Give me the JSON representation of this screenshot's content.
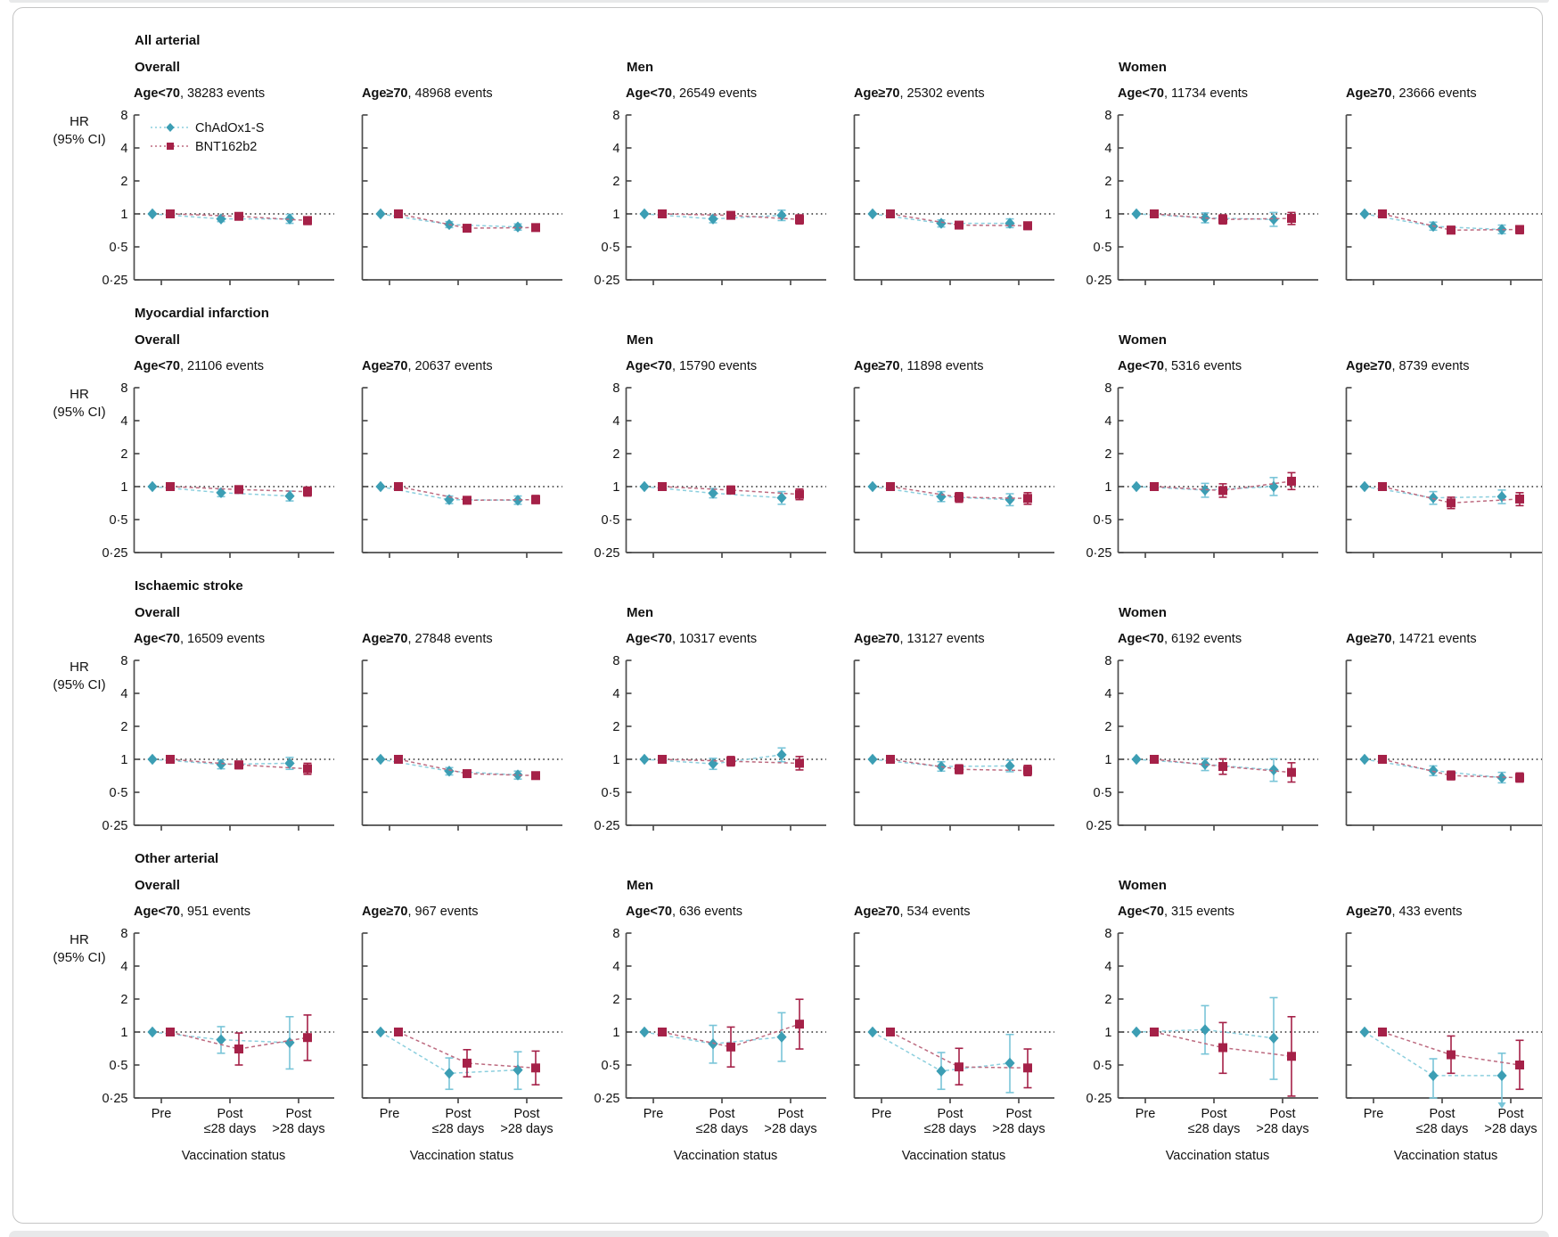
{
  "chart_data": {
    "type": "line",
    "description": "Hazard ratios (95% CI) for arterial events before and after vaccination, by outcome, sex and age group",
    "x_categories": [
      "Pre",
      "Post ≤28 days",
      "Post >28 days"
    ],
    "x_tick_lines": [
      [
        "Pre"
      ],
      [
        "Post",
        "≤28 days"
      ],
      [
        "Post",
        ">28 days"
      ]
    ],
    "xlabel": "Vaccination status",
    "ylabel_lines": [
      "HR",
      "(95% CI)"
    ],
    "y_ticks": [
      8,
      4,
      2,
      1,
      0.5,
      0.25
    ],
    "y_tick_labels": [
      "8",
      "4",
      "2",
      "1",
      "0·5",
      "0·25"
    ],
    "ylim": [
      0.25,
      8
    ],
    "yscale": "log2",
    "reference_line": 1,
    "grid": false,
    "legend": {
      "position": "inside-top-left-first-panel",
      "entries": [
        "ChAdOx1-S",
        "BNT162b2"
      ]
    },
    "series_meta": [
      {
        "name": "ChAdOx1-S",
        "marker": "diamond",
        "color": "#3c9eb4",
        "ci_color": "#79c5d8",
        "line_color": "#8ccfde"
      },
      {
        "name": "BNT162b2",
        "marker": "square",
        "color": "#a52148",
        "ci_color": "#a52148",
        "line_color": "#bd6b80"
      }
    ],
    "groups": [
      "Overall",
      "Men",
      "Women"
    ],
    "rows": [
      {
        "outcome": "All arterial",
        "panels": [
          {
            "age": "Age<70",
            "events": ", 38283 events",
            "cha": [
              [
                1,
                1,
                1
              ],
              [
                0.9,
                0.85,
                0.96
              ],
              [
                0.9,
                0.82,
                0.99
              ]
            ],
            "bnt": [
              [
                1,
                1,
                1
              ],
              [
                0.95,
                0.9,
                1.0
              ],
              [
                0.87,
                0.8,
                0.94
              ]
            ]
          },
          {
            "age": "Age≥70",
            "events": ", 48968 events",
            "cha": [
              [
                1,
                1,
                1
              ],
              [
                0.8,
                0.75,
                0.85
              ],
              [
                0.76,
                0.71,
                0.81
              ]
            ],
            "bnt": [
              [
                1,
                1,
                1
              ],
              [
                0.74,
                0.7,
                0.78
              ],
              [
                0.75,
                0.71,
                0.79
              ]
            ]
          },
          {
            "age": "Age<70",
            "events": ", 26549 events",
            "cha": [
              [
                1,
                1,
                1
              ],
              [
                0.9,
                0.83,
                0.97
              ],
              [
                0.97,
                0.87,
                1.08
              ]
            ],
            "bnt": [
              [
                1,
                1,
                1
              ],
              [
                0.97,
                0.91,
                1.04
              ],
              [
                0.89,
                0.81,
                0.98
              ]
            ]
          },
          {
            "age": "Age≥70",
            "events": ", 25302 events",
            "cha": [
              [
                1,
                1,
                1
              ],
              [
                0.82,
                0.76,
                0.88
              ],
              [
                0.82,
                0.75,
                0.9
              ]
            ],
            "bnt": [
              [
                1,
                1,
                1
              ],
              [
                0.79,
                0.74,
                0.84
              ],
              [
                0.78,
                0.72,
                0.84
              ]
            ]
          },
          {
            "age": "Age<70",
            "events": ", 11734 events",
            "cha": [
              [
                1,
                1,
                1
              ],
              [
                0.92,
                0.83,
                1.02
              ],
              [
                0.89,
                0.77,
                1.03
              ]
            ],
            "bnt": [
              [
                1,
                1,
                1
              ],
              [
                0.89,
                0.81,
                0.98
              ],
              [
                0.91,
                0.8,
                1.03
              ]
            ]
          },
          {
            "age": "Age≥70",
            "events": ", 23666 events",
            "cha": [
              [
                1,
                1,
                1
              ],
              [
                0.77,
                0.71,
                0.84
              ],
              [
                0.72,
                0.66,
                0.79
              ]
            ],
            "bnt": [
              [
                1,
                1,
                1
              ],
              [
                0.71,
                0.66,
                0.77
              ],
              [
                0.72,
                0.66,
                0.78
              ]
            ]
          }
        ]
      },
      {
        "outcome": "Myocardial infarction",
        "panels": [
          {
            "age": "Age<70",
            "events": ", 21106 events",
            "cha": [
              [
                1,
                1,
                1
              ],
              [
                0.88,
                0.81,
                0.95
              ],
              [
                0.82,
                0.74,
                0.91
              ]
            ],
            "bnt": [
              [
                1,
                1,
                1
              ],
              [
                0.94,
                0.88,
                1.01
              ],
              [
                0.9,
                0.82,
                0.99
              ]
            ]
          },
          {
            "age": "Age≥70",
            "events": ", 20637 events",
            "cha": [
              [
                1,
                1,
                1
              ],
              [
                0.76,
                0.7,
                0.82
              ],
              [
                0.75,
                0.69,
                0.82
              ]
            ],
            "bnt": [
              [
                1,
                1,
                1
              ],
              [
                0.75,
                0.7,
                0.81
              ],
              [
                0.76,
                0.7,
                0.83
              ]
            ]
          },
          {
            "age": "Age<70",
            "events": ", 15790 events",
            "cha": [
              [
                1,
                1,
                1
              ],
              [
                0.87,
                0.79,
                0.96
              ],
              [
                0.79,
                0.69,
                0.9
              ]
            ],
            "bnt": [
              [
                1,
                1,
                1
              ],
              [
                0.93,
                0.86,
                1.01
              ],
              [
                0.85,
                0.76,
                0.95
              ]
            ]
          },
          {
            "age": "Age≥70",
            "events": ", 11898 events",
            "cha": [
              [
                1,
                1,
                1
              ],
              [
                0.81,
                0.73,
                0.9
              ],
              [
                0.76,
                0.67,
                0.86
              ]
            ],
            "bnt": [
              [
                1,
                1,
                1
              ],
              [
                0.8,
                0.72,
                0.88
              ],
              [
                0.78,
                0.69,
                0.88
              ]
            ]
          },
          {
            "age": "Age<70",
            "events": ", 5316 events",
            "cha": [
              [
                1,
                1,
                1
              ],
              [
                0.93,
                0.8,
                1.07
              ],
              [
                1.0,
                0.83,
                1.21
              ]
            ],
            "bnt": [
              [
                1,
                1,
                1
              ],
              [
                0.92,
                0.8,
                1.06
              ],
              [
                1.12,
                0.94,
                1.34
              ]
            ]
          },
          {
            "age": "Age≥70",
            "events": ", 8739 events",
            "cha": [
              [
                1,
                1,
                1
              ],
              [
                0.79,
                0.69,
                0.9
              ],
              [
                0.81,
                0.7,
                0.93
              ]
            ],
            "bnt": [
              [
                1,
                1,
                1
              ],
              [
                0.71,
                0.63,
                0.8
              ],
              [
                0.77,
                0.67,
                0.88
              ]
            ]
          }
        ]
      },
      {
        "outcome": "Ischaemic stroke",
        "panels": [
          {
            "age": "Age<70",
            "events": ", 16509 events",
            "cha": [
              [
                1,
                1,
                1
              ],
              [
                0.9,
                0.82,
                0.98
              ],
              [
                0.92,
                0.81,
                1.04
              ]
            ],
            "bnt": [
              [
                1,
                1,
                1
              ],
              [
                0.89,
                0.82,
                0.96
              ],
              [
                0.82,
                0.73,
                0.92
              ]
            ]
          },
          {
            "age": "Age≥70",
            "events": ", 27848 events",
            "cha": [
              [
                1,
                1,
                1
              ],
              [
                0.78,
                0.72,
                0.84
              ],
              [
                0.72,
                0.66,
                0.78
              ]
            ],
            "bnt": [
              [
                1,
                1,
                1
              ],
              [
                0.74,
                0.69,
                0.79
              ],
              [
                0.71,
                0.66,
                0.76
              ]
            ]
          },
          {
            "age": "Age<70",
            "events": ", 10317 events",
            "cha": [
              [
                1,
                1,
                1
              ],
              [
                0.91,
                0.81,
                1.02
              ],
              [
                1.1,
                0.95,
                1.27
              ]
            ],
            "bnt": [
              [
                1,
                1,
                1
              ],
              [
                0.96,
                0.87,
                1.06
              ],
              [
                0.92,
                0.8,
                1.06
              ]
            ]
          },
          {
            "age": "Age≥70",
            "events": ", 13127 events",
            "cha": [
              [
                1,
                1,
                1
              ],
              [
                0.86,
                0.78,
                0.95
              ],
              [
                0.87,
                0.77,
                0.98
              ]
            ],
            "bnt": [
              [
                1,
                1,
                1
              ],
              [
                0.81,
                0.74,
                0.89
              ],
              [
                0.79,
                0.71,
                0.88
              ]
            ]
          },
          {
            "age": "Age<70",
            "events": ", 6192 events",
            "cha": [
              [
                1,
                1,
                1
              ],
              [
                0.9,
                0.79,
                1.02
              ],
              [
                0.8,
                0.63,
                1.01
              ]
            ],
            "bnt": [
              [
                1,
                1,
                1
              ],
              [
                0.86,
                0.73,
                1.01
              ],
              [
                0.76,
                0.62,
                0.93
              ]
            ]
          },
          {
            "age": "Age≥70",
            "events": ", 14721 events",
            "cha": [
              [
                1,
                1,
                1
              ],
              [
                0.79,
                0.71,
                0.87
              ],
              [
                0.68,
                0.61,
                0.76
              ]
            ],
            "bnt": [
              [
                1,
                1,
                1
              ],
              [
                0.71,
                0.65,
                0.78
              ],
              [
                0.68,
                0.62,
                0.75
              ]
            ]
          }
        ]
      },
      {
        "outcome": "Other arterial",
        "panels": [
          {
            "age": "Age<70",
            "events": ", 951 events",
            "cha": [
              [
                1,
                1,
                1
              ],
              [
                0.85,
                0.64,
                1.12
              ],
              [
                0.8,
                0.46,
                1.38
              ]
            ],
            "bnt": [
              [
                1,
                1,
                1
              ],
              [
                0.7,
                0.5,
                0.98
              ],
              [
                0.89,
                0.55,
                1.43
              ]
            ]
          },
          {
            "age": "Age≥70",
            "events": ", 967 events",
            "cha": [
              [
                1,
                1,
                1
              ],
              [
                0.42,
                0.3,
                0.58
              ],
              [
                0.45,
                0.3,
                0.66
              ]
            ],
            "bnt": [
              [
                1,
                1,
                1
              ],
              [
                0.52,
                0.39,
                0.69
              ],
              [
                0.47,
                0.33,
                0.67
              ]
            ]
          },
          {
            "age": "Age<70",
            "events": ", 636 events",
            "cha": [
              [
                1,
                1,
                1
              ],
              [
                0.78,
                0.52,
                1.15
              ],
              [
                0.9,
                0.54,
                1.5
              ]
            ],
            "bnt": [
              [
                1,
                1,
                1
              ],
              [
                0.73,
                0.48,
                1.11
              ],
              [
                1.18,
                0.7,
                1.99
              ]
            ]
          },
          {
            "age": "Age≥70",
            "events": ", 534 events",
            "cha": [
              [
                1,
                1,
                1
              ],
              [
                0.44,
                0.3,
                0.65
              ],
              [
                0.52,
                0.28,
                0.95
              ]
            ],
            "bnt": [
              [
                1,
                1,
                1
              ],
              [
                0.48,
                0.33,
                0.71
              ],
              [
                0.47,
                0.31,
                0.7
              ]
            ]
          },
          {
            "age": "Age<70",
            "events": ", 315 events",
            "cha": [
              [
                1,
                1,
                1
              ],
              [
                1.05,
                0.63,
                1.74
              ],
              [
                0.88,
                0.37,
                2.06
              ]
            ],
            "bnt": [
              [
                1,
                1,
                1
              ],
              [
                0.72,
                0.42,
                1.22
              ],
              [
                0.6,
                0.26,
                1.38
              ]
            ]
          },
          {
            "age": "Age≥70",
            "events": ", 433 events",
            "cha": [
              [
                1,
                1,
                1
              ],
              [
                0.4,
                0.25,
                0.57
              ],
              [
                0.4,
                0.22,
                0.64
              ]
            ],
            "cha_arrows": [
              0,
              0,
              1
            ],
            "bnt": [
              [
                1,
                1,
                1
              ],
              [
                0.62,
                0.42,
                0.92
              ],
              [
                0.5,
                0.3,
                0.84
              ]
            ]
          }
        ]
      }
    ]
  },
  "colors": {
    "axis": "#4d4d4d",
    "reference_line": "#4a4a4a",
    "text": "#111111",
    "card_border": "#c5c5c5",
    "page_strip": "#e8e9ea"
  }
}
